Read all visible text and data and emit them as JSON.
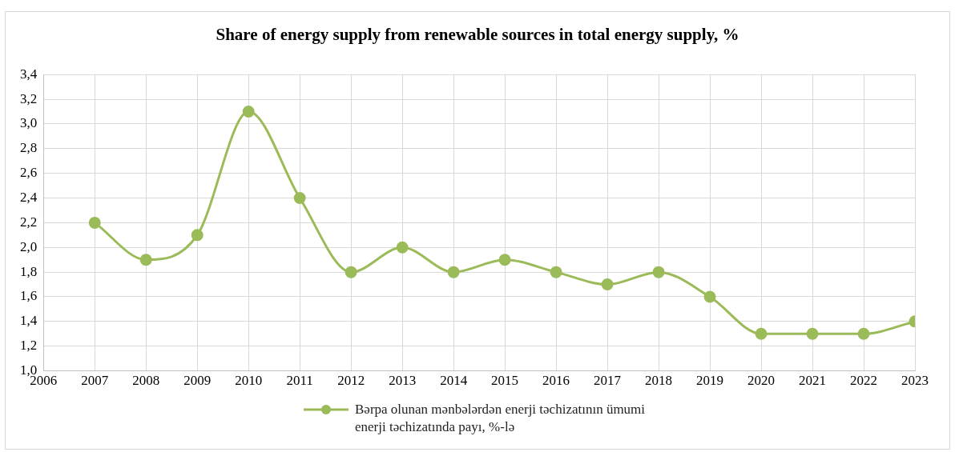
{
  "chart_data": {
    "type": "line",
    "title": "Share of energy supply from renewable sources in total energy supply, %",
    "x": [
      2007,
      2008,
      2009,
      2010,
      2011,
      2012,
      2013,
      2014,
      2015,
      2016,
      2017,
      2018,
      2019,
      2020,
      2021,
      2022,
      2023
    ],
    "series": [
      {
        "name": "Bərpa olunan mənbələrdən enerji təchizatının ümumi enerji təchizatında payı, %-lə",
        "color": "#9bbb59",
        "values": [
          2.2,
          1.9,
          2.1,
          3.1,
          2.4,
          1.8,
          2.0,
          1.8,
          1.9,
          1.8,
          1.7,
          1.8,
          1.6,
          1.3,
          1.3,
          1.3,
          1.4
        ]
      }
    ],
    "xlim": [
      2006,
      2023
    ],
    "xticks": [
      2006,
      2007,
      2008,
      2009,
      2010,
      2011,
      2012,
      2013,
      2014,
      2015,
      2016,
      2017,
      2018,
      2019,
      2020,
      2021,
      2022,
      2023
    ],
    "ylim": [
      1.0,
      3.4
    ],
    "yticks": [
      {
        "value": 1.0,
        "label": "1,0"
      },
      {
        "value": 1.2,
        "label": "1,2"
      },
      {
        "value": 1.4,
        "label": "1,4"
      },
      {
        "value": 1.6,
        "label": "1,6"
      },
      {
        "value": 1.8,
        "label": "1,8"
      },
      {
        "value": 2.0,
        "label": "2,0"
      },
      {
        "value": 2.2,
        "label": "2,2"
      },
      {
        "value": 2.4,
        "label": "2,4"
      },
      {
        "value": 2.6,
        "label": "2,6"
      },
      {
        "value": 2.8,
        "label": "2,8"
      },
      {
        "value": 3.0,
        "label": "3,0"
      },
      {
        "value": 3.2,
        "label": "3,2"
      },
      {
        "value": 3.4,
        "label": "3,4"
      }
    ],
    "grid": true,
    "legend": "bottom",
    "marker": "circle",
    "line_style": "solid"
  }
}
